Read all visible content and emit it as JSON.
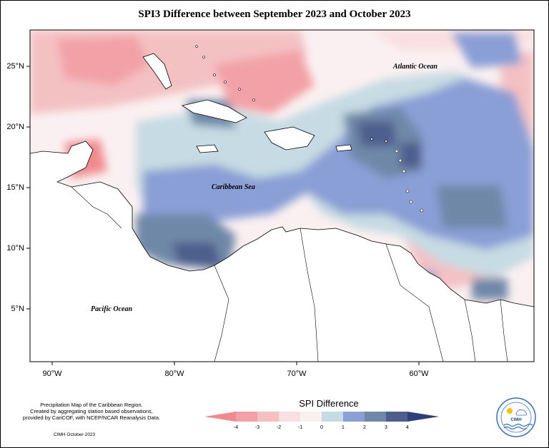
{
  "title": "SPI3 Difference between September 2023 and October 2023",
  "map": {
    "lat_labels": [
      "25°N",
      "20°N",
      "15°N",
      "10°N",
      "5°N"
    ],
    "lon_labels": [
      "90°W",
      "80°W",
      "70°W",
      "60°W"
    ],
    "oceans": {
      "atlantic": "Atlantic Ocean",
      "caribbean": "Caribbean Sea",
      "pacific": "Pacific Ocean"
    }
  },
  "info": {
    "line1": "Precipitation Map of the Caribbean Region.",
    "line2": "Created by aggregating station based observations,",
    "line3": "provided by CariCOF, with NCEP/NCAR Reanalysis Data.",
    "date": "CIMH October-2023"
  },
  "legend": {
    "title": "SPI Difference",
    "ticks": [
      "-4",
      "-3",
      "-2",
      "-1",
      "0",
      "1",
      "2",
      "3",
      "4"
    ],
    "colors": [
      "#f08a8f",
      "#f2a2a6",
      "#f4c1c3",
      "#f9dfe1",
      "#fbf0f1",
      "#c6dbe3",
      "#8a9fd6",
      "#6f88a8",
      "#4d5e8c",
      "#2f3f7a"
    ]
  },
  "logo": {
    "text": "CIMH"
  }
}
